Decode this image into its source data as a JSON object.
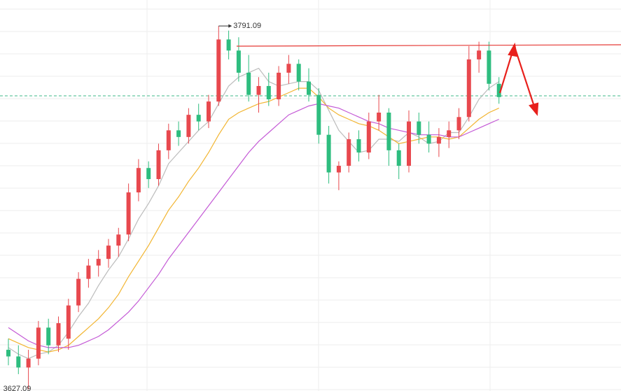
{
  "chart_data": {
    "type": "candlestick",
    "ylim": [
      3626.4,
      3802.8
    ],
    "up_color": "#e8484e",
    "down_color": "#2ebd7f",
    "max_label": 3791.09,
    "min_label": 3627.09,
    "open": [
      3645,
      3642,
      3637,
      3641,
      3655,
      3647,
      3650,
      3665,
      3677,
      3683,
      3686,
      3692,
      3697,
      3716,
      3727,
      3722,
      3735,
      3744,
      3741,
      3751,
      3748,
      3757,
      3785,
      3780,
      3770,
      3760,
      3764,
      3758,
      3770,
      3774,
      3766,
      3760,
      3742,
      3725,
      3728,
      3740,
      3734,
      3748,
      3752,
      3735,
      3728,
      3748,
      3742,
      3738,
      3741,
      3744,
      3750,
      3776,
      3780,
      3765
    ],
    "high": [
      3650,
      3647,
      3645,
      3658,
      3659,
      3660,
      3668,
      3680,
      3686,
      3690,
      3695,
      3700,
      3720,
      3731,
      3730,
      3738,
      3747,
      3748,
      3754,
      3756,
      3760,
      3791.09,
      3789,
      3786,
      3778,
      3768,
      3770,
      3773,
      3778,
      3776,
      3772,
      3763,
      3746,
      3730,
      3743,
      3744,
      3752,
      3760,
      3754,
      3738,
      3753,
      3752,
      3748,
      3745,
      3748,
      3754,
      3782,
      3784,
      3784,
      3768
    ],
    "low": [
      3638,
      3634,
      3627.09,
      3638,
      3643,
      3644,
      3645,
      3662,
      3673,
      3678,
      3682,
      3687,
      3694,
      3712,
      3718,
      3719,
      3731,
      3737,
      3738,
      3744,
      3745,
      3755,
      3776,
      3766,
      3757,
      3752,
      3755,
      3755,
      3765,
      3762,
      3757,
      3738,
      3720,
      3717,
      3725,
      3730,
      3731,
      3744,
      3728,
      3722,
      3725,
      3738,
      3734,
      3732,
      3736,
      3740,
      3748,
      3770,
      3762,
      3756
    ],
    "close": [
      3642,
      3637,
      3641,
      3655,
      3647,
      3657,
      3665,
      3677,
      3683,
      3686,
      3692,
      3697,
      3716,
      3727,
      3722,
      3735,
      3744,
      3741,
      3751,
      3748,
      3757,
      3785,
      3780,
      3770,
      3760,
      3764,
      3758,
      3770,
      3774,
      3766,
      3760,
      3742,
      3725,
      3728,
      3740,
      3734,
      3748,
      3752,
      3735,
      3728,
      3748,
      3742,
      3738,
      3741,
      3744,
      3750,
      3776,
      3780,
      3765,
      3759
    ],
    "lines": [
      {
        "color": "#bcbcbc",
        "values": [
          3646,
          3643,
          3641,
          3643,
          3644,
          3647,
          3653,
          3660,
          3666,
          3674,
          3681,
          3687,
          3695,
          3704,
          3711,
          3719,
          3729,
          3734,
          3739,
          3744,
          3748,
          3756,
          3764,
          3768,
          3770,
          3772,
          3766,
          3764,
          3765,
          3766,
          3766,
          3762,
          3753,
          3744,
          3739,
          3734,
          3735,
          3740,
          3740,
          3739,
          3743,
          3741,
          3738,
          3739,
          3743,
          3743,
          3750,
          3758,
          3763,
          3766
        ]
      },
      {
        "color": "#f2b531",
        "values": [
          3650,
          3648,
          3646,
          3645,
          3644,
          3645,
          3647,
          3651,
          3655,
          3659,
          3664,
          3670,
          3678,
          3685,
          3692,
          3700,
          3708,
          3714,
          3721,
          3727,
          3734,
          3742,
          3749,
          3752,
          3754,
          3756,
          3757,
          3759,
          3761,
          3763,
          3763,
          3759,
          3754,
          3751,
          3749,
          3747,
          3746,
          3744,
          3741,
          3738,
          3739,
          3740,
          3741,
          3741,
          3740,
          3741,
          3745,
          3749,
          3752,
          3754
        ]
      },
      {
        "color": "#c45ad6",
        "values": [
          3655,
          3652,
          3649,
          3647,
          3646,
          3646,
          3646,
          3647,
          3649,
          3651,
          3654,
          3658,
          3662,
          3667,
          3673,
          3679,
          3686,
          3692,
          3698,
          3704,
          3710,
          3716,
          3722,
          3728,
          3734,
          3739,
          3743,
          3747,
          3751,
          3753,
          3755,
          3756,
          3755,
          3754,
          3752,
          3750,
          3748,
          3747,
          3745,
          3744,
          3743,
          3742,
          3742,
          3742,
          3741,
          3741,
          3743,
          3745,
          3747,
          3749
        ]
      }
    ]
  }
}
